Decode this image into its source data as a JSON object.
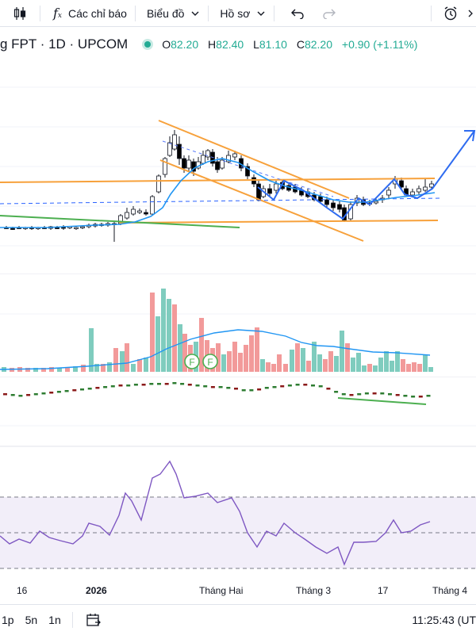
{
  "toolbar": {
    "indicators_label": "Các chỉ báo",
    "layout_label": "Biểu đồ",
    "profile_label": "Hồ sơ"
  },
  "legend": {
    "symbol": "g FPT · 1D · UPCOM",
    "open_label": "O",
    "open": "82.20",
    "high_label": "H",
    "high": "82.40",
    "low_label": "L",
    "low": "81.10",
    "close_label": "C",
    "close": "82.20",
    "change": "+0.90 (+1.11%)"
  },
  "colors": {
    "up": "#26a69a",
    "down": "#000000",
    "up_volume": "#7fccbe",
    "down_volume": "#f29a9a",
    "ma": "#2196f3",
    "trendline_orange": "#f7a13b",
    "trendline_green": "#4caf50",
    "rsi": "#7e57c2"
  },
  "volume_markers": [
    "F",
    "F"
  ],
  "time_axis": [
    "16",
    "2026",
    "Tháng Hai",
    "Tháng 3",
    "17",
    "Tháng 4"
  ],
  "bottom": {
    "range_1p": "1p",
    "range_5n": "5n",
    "range_1n": "1n",
    "clock": "11:25:43 (UT"
  },
  "chart_data": {
    "type": "candlestick",
    "symbol": "FPT",
    "interval": "1D",
    "exchange": "UPCOM",
    "last_ohlc": {
      "open": 82.2,
      "high": 82.4,
      "low": 81.1,
      "close": 82.2,
      "change": 0.9,
      "change_pct": 1.11
    },
    "x_labels": [
      "16",
      "2026",
      "Tháng Hai",
      "Tháng 3",
      "17",
      "Tháng 4"
    ],
    "panes": [
      "price",
      "volume",
      "oscillator",
      "rsi"
    ]
  }
}
